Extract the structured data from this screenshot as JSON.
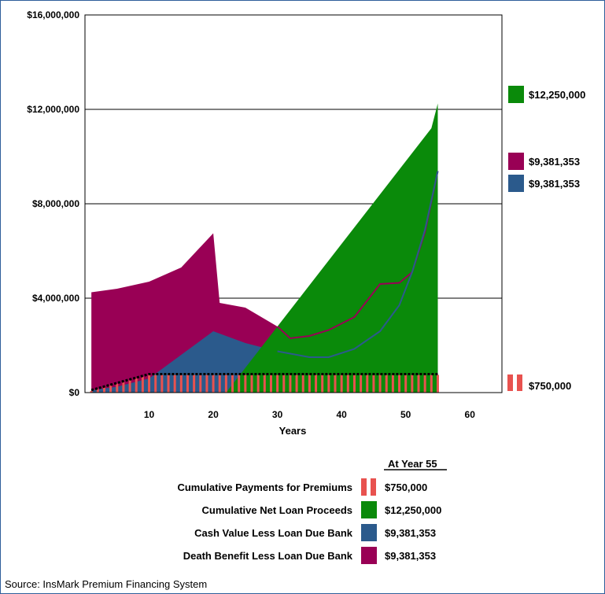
{
  "source_note": "Source: InsMark Premium Financing System",
  "chart_data": {
    "type": "area",
    "xlabel": "Years",
    "xlim": [
      0,
      65
    ],
    "ylim": [
      0,
      16000000
    ],
    "x_ticks": [
      10,
      20,
      30,
      40,
      50,
      60
    ],
    "y_ticks": [
      {
        "value": 0,
        "label": "$0"
      },
      {
        "value": 4000000,
        "label": "$4,000,000"
      },
      {
        "value": 8000000,
        "label": "$8,000,000"
      },
      {
        "value": 12000000,
        "label": "$12,000,000"
      },
      {
        "value": 16000000,
        "label": "$16,000,000"
      }
    ],
    "grid": "horizontal",
    "legend_title": "At Year 55",
    "series": [
      {
        "key": "death",
        "name": "Death Benefit Less Loan Due Bank",
        "color": "#990055",
        "end_label": "$9,381,353",
        "points": [
          [
            1,
            4250000
          ],
          [
            5,
            4400000
          ],
          [
            10,
            4700000
          ],
          [
            15,
            5300000
          ],
          [
            20,
            6750000
          ],
          [
            21,
            3800000
          ],
          [
            25,
            3600000
          ],
          [
            30,
            2800000
          ],
          [
            32,
            2300000
          ],
          [
            35,
            2400000
          ],
          [
            38,
            2650000
          ],
          [
            42,
            3200000
          ],
          [
            46,
            4600000
          ],
          [
            49,
            4650000
          ],
          [
            51,
            5100000
          ],
          [
            53,
            6800000
          ],
          [
            55,
            9381353
          ]
        ]
      },
      {
        "key": "cash",
        "name": "Cash Value Less Loan Due Bank",
        "color": "#2b5a8c",
        "end_label": "$9,381,353",
        "points": [
          [
            1,
            100000
          ],
          [
            5,
            250000
          ],
          [
            10,
            600000
          ],
          [
            15,
            1600000
          ],
          [
            20,
            2600000
          ],
          [
            25,
            2100000
          ],
          [
            30,
            1750000
          ],
          [
            35,
            1500000
          ],
          [
            38,
            1500000
          ],
          [
            42,
            1850000
          ],
          [
            46,
            2600000
          ],
          [
            49,
            3700000
          ],
          [
            51,
            5100000
          ],
          [
            53,
            6900000
          ],
          [
            55,
            9381353
          ]
        ]
      },
      {
        "key": "loan",
        "name": "Cumulative Net Loan Proceeds",
        "color": "#0a8a0a",
        "end_label": "$12,250,000",
        "points": [
          [
            1,
            0
          ],
          [
            2,
            0
          ],
          [
            3,
            0
          ],
          [
            4,
            0
          ],
          [
            5,
            0
          ],
          [
            6,
            0
          ],
          [
            7,
            0
          ],
          [
            8,
            0
          ],
          [
            9,
            0
          ],
          [
            10,
            0
          ],
          [
            11,
            0
          ],
          [
            12,
            0
          ],
          [
            13,
            0
          ],
          [
            14,
            0
          ],
          [
            15,
            0
          ],
          [
            16,
            0
          ],
          [
            17,
            0
          ],
          [
            18,
            0
          ],
          [
            19,
            0
          ],
          [
            20,
            0
          ],
          [
            21,
            0
          ],
          [
            22,
            0
          ],
          [
            23,
            350000
          ],
          [
            24,
            700000
          ],
          [
            25,
            1050000
          ],
          [
            26,
            1400000
          ],
          [
            27,
            1750000
          ],
          [
            28,
            2100000
          ],
          [
            29,
            2450000
          ],
          [
            30,
            2800000
          ],
          [
            31,
            3150000
          ],
          [
            32,
            3500000
          ],
          [
            33,
            3850000
          ],
          [
            34,
            4200000
          ],
          [
            35,
            4550000
          ],
          [
            36,
            4900000
          ],
          [
            37,
            5250000
          ],
          [
            38,
            5600000
          ],
          [
            39,
            5950000
          ],
          [
            40,
            6300000
          ],
          [
            41,
            6650000
          ],
          [
            42,
            7000000
          ],
          [
            43,
            7350000
          ],
          [
            44,
            7700000
          ],
          [
            45,
            8050000
          ],
          [
            46,
            8400000
          ],
          [
            47,
            8750000
          ],
          [
            48,
            9100000
          ],
          [
            49,
            9450000
          ],
          [
            50,
            9800000
          ],
          [
            51,
            10150000
          ],
          [
            52,
            10500000
          ],
          [
            53,
            10850000
          ],
          [
            54,
            11200000
          ],
          [
            55,
            12250000
          ]
        ]
      },
      {
        "key": "premium",
        "name": "Cumulative Payments for Premiums",
        "color": "#e8524f",
        "end_label": "$750,000",
        "bars": [
          [
            1,
            75000
          ],
          [
            2,
            150000
          ],
          [
            3,
            225000
          ],
          [
            4,
            300000
          ],
          [
            5,
            375000
          ],
          [
            6,
            450000
          ],
          [
            7,
            525000
          ],
          [
            8,
            600000
          ],
          [
            9,
            675000
          ],
          [
            10,
            750000
          ],
          [
            11,
            750000
          ],
          [
            12,
            750000
          ],
          [
            13,
            750000
          ],
          [
            14,
            750000
          ],
          [
            15,
            750000
          ],
          [
            16,
            750000
          ],
          [
            17,
            750000
          ],
          [
            18,
            750000
          ],
          [
            19,
            750000
          ],
          [
            20,
            750000
          ],
          [
            21,
            750000
          ],
          [
            22,
            750000
          ],
          [
            23,
            750000
          ],
          [
            24,
            750000
          ],
          [
            25,
            750000
          ],
          [
            26,
            750000
          ],
          [
            27,
            750000
          ],
          [
            28,
            750000
          ],
          [
            29,
            750000
          ],
          [
            30,
            750000
          ],
          [
            31,
            750000
          ],
          [
            32,
            750000
          ],
          [
            33,
            750000
          ],
          [
            34,
            750000
          ],
          [
            35,
            750000
          ],
          [
            36,
            750000
          ],
          [
            37,
            750000
          ],
          [
            38,
            750000
          ],
          [
            39,
            750000
          ],
          [
            40,
            750000
          ],
          [
            41,
            750000
          ],
          [
            42,
            750000
          ],
          [
            43,
            750000
          ],
          [
            44,
            750000
          ],
          [
            45,
            750000
          ],
          [
            46,
            750000
          ],
          [
            47,
            750000
          ],
          [
            48,
            750000
          ],
          [
            49,
            750000
          ],
          [
            50,
            750000
          ],
          [
            51,
            750000
          ],
          [
            52,
            750000
          ],
          [
            53,
            750000
          ],
          [
            54,
            750000
          ],
          [
            55,
            750000
          ]
        ]
      }
    ],
    "legend_order": [
      "premium",
      "loan",
      "cash",
      "death"
    ]
  }
}
